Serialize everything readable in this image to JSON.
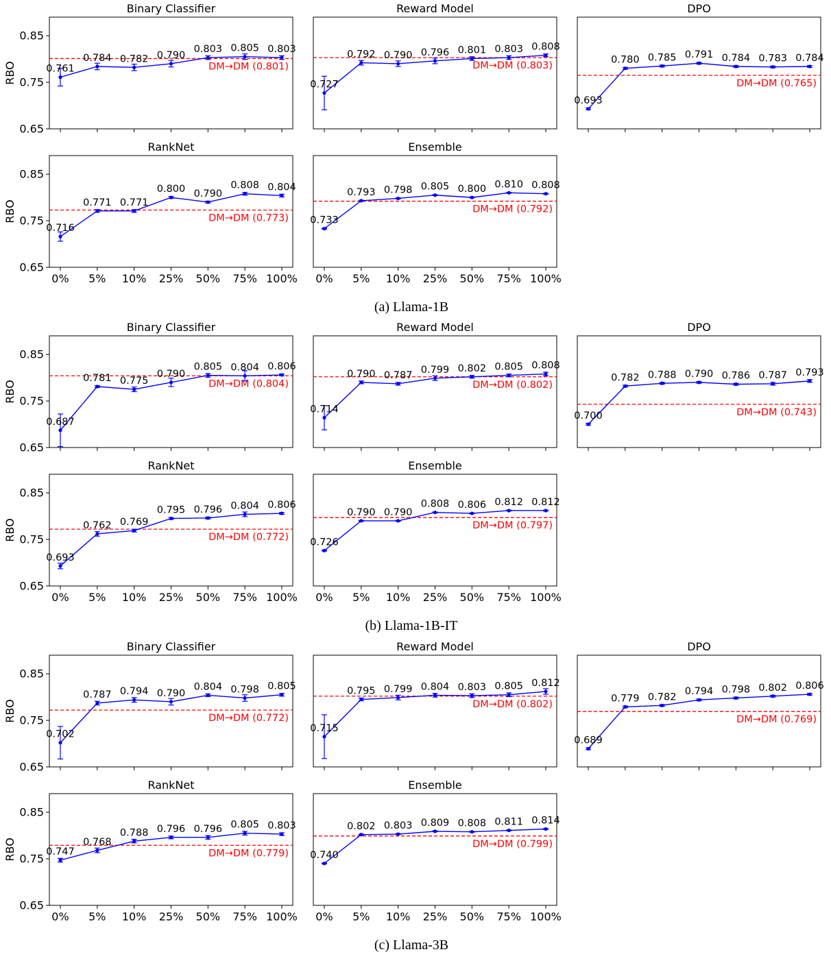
{
  "chart_data": {
    "type": "line",
    "categories": [
      "0%",
      "5%",
      "10%",
      "25%",
      "50%",
      "75%",
      "100%"
    ],
    "ylabel": "RBO",
    "yticks": [
      "0.65",
      "0.75",
      "0.85"
    ],
    "ylim": [
      0.65,
      0.89
    ],
    "groups": [
      {
        "caption": "(a) Llama-1B",
        "panels": [
          {
            "title": "Binary Classifier",
            "values": [
              0.761,
              0.784,
              0.782,
              0.79,
              0.803,
              0.805,
              0.803
            ],
            "value_labels": [
              "0.761",
              "0.784",
              "0.782",
              "0.790",
              "0.803",
              "0.805",
              "0.803"
            ],
            "errors": [
              0.019,
              0.007,
              0.007,
              0.007,
              0.004,
              0.006,
              0.004
            ],
            "ref_value": 0.801,
            "ref_label": "DM→DM (0.801)"
          },
          {
            "title": "Reward Model",
            "values": [
              0.727,
              0.792,
              0.79,
              0.796,
              0.801,
              0.803,
              0.808
            ],
            "value_labels": [
              "0.727",
              "0.792",
              "0.790",
              "0.796",
              "0.801",
              "0.803",
              "0.808"
            ],
            "errors": [
              0.036,
              0.005,
              0.006,
              0.006,
              0.004,
              0.004,
              0.003
            ],
            "ref_value": 0.803,
            "ref_label": "DM→DM (0.803)"
          },
          {
            "title": "DPO",
            "values": [
              0.693,
              0.78,
              0.785,
              0.791,
              0.784,
              0.783,
              0.784
            ],
            "value_labels": [
              "0.693",
              "0.780",
              "0.785",
              "0.791",
              "0.784",
              "0.783",
              "0.784"
            ],
            "errors": [
              0.002,
              0.002,
              0.002,
              0.002,
              0.002,
              0.002,
              0.002
            ],
            "ref_value": 0.765,
            "ref_label": "DM→DM (0.765)"
          },
          {
            "title": "RankNet",
            "values": [
              0.716,
              0.771,
              0.771,
              0.8,
              0.79,
              0.808,
              0.804
            ],
            "value_labels": [
              "0.716",
              "0.771",
              "0.771",
              "0.800",
              "0.790",
              "0.808",
              "0.804"
            ],
            "errors": [
              0.01,
              0.003,
              0.003,
              0.002,
              0.002,
              0.003,
              0.003
            ],
            "ref_value": 0.773,
            "ref_label": "DM→DM (0.773)"
          },
          {
            "title": "Ensemble",
            "values": [
              0.733,
              0.793,
              0.798,
              0.805,
              0.8,
              0.81,
              0.808
            ],
            "value_labels": [
              "0.733",
              "0.793",
              "0.798",
              "0.805",
              "0.800",
              "0.810",
              "0.808"
            ],
            "errors": [
              0.001,
              0.001,
              0.001,
              0.001,
              0.001,
              0.001,
              0.001
            ],
            "ref_value": 0.792,
            "ref_label": "DM→DM (0.792)"
          }
        ]
      },
      {
        "caption": "(b) Llama-1B-IT",
        "panels": [
          {
            "title": "Binary Classifier",
            "values": [
              0.687,
              0.781,
              0.775,
              0.79,
              0.805,
              0.804,
              0.806
            ],
            "value_labels": [
              "0.687",
              "0.781",
              "0.775",
              "0.790",
              "0.805",
              "0.804",
              "0.806"
            ],
            "errors": [
              0.035,
              0.002,
              0.005,
              0.009,
              0.004,
              0.011,
              0.002
            ],
            "ref_value": 0.804,
            "ref_label": "DM→DM (0.804)"
          },
          {
            "title": "Reward Model",
            "values": [
              0.714,
              0.79,
              0.787,
              0.799,
              0.802,
              0.805,
              0.808
            ],
            "value_labels": [
              "0.714",
              "0.790",
              "0.787",
              "0.799",
              "0.802",
              "0.805",
              "0.808"
            ],
            "errors": [
              0.026,
              0.003,
              0.003,
              0.005,
              0.003,
              0.003,
              0.004
            ],
            "ref_value": 0.802,
            "ref_label": "DM→DM (0.802)"
          },
          {
            "title": "DPO",
            "values": [
              0.7,
              0.782,
              0.788,
              0.79,
              0.786,
              0.787,
              0.793
            ],
            "value_labels": [
              "0.700",
              "0.782",
              "0.788",
              "0.790",
              "0.786",
              "0.787",
              "0.793"
            ],
            "errors": [
              0.002,
              0.002,
              0.002,
              0.002,
              0.002,
              0.003,
              0.003
            ],
            "ref_value": 0.743,
            "ref_label": "DM→DM (0.743)"
          },
          {
            "title": "RankNet",
            "values": [
              0.693,
              0.762,
              0.769,
              0.795,
              0.796,
              0.804,
              0.806
            ],
            "value_labels": [
              "0.693",
              "0.762",
              "0.769",
              "0.795",
              "0.796",
              "0.804",
              "0.806"
            ],
            "errors": [
              0.006,
              0.005,
              0.003,
              0.002,
              0.002,
              0.005,
              0.002
            ],
            "ref_value": 0.772,
            "ref_label": "DM→DM (0.772)"
          },
          {
            "title": "Ensemble",
            "values": [
              0.726,
              0.79,
              0.79,
              0.808,
              0.806,
              0.812,
              0.812
            ],
            "value_labels": [
              "0.726",
              "0.790",
              "0.790",
              "0.808",
              "0.806",
              "0.812",
              "0.812"
            ],
            "errors": [
              0.001,
              0.001,
              0.001,
              0.001,
              0.001,
              0.001,
              0.001
            ],
            "ref_value": 0.797,
            "ref_label": "DM→DM (0.797)"
          }
        ]
      },
      {
        "caption": "(c) Llama-3B",
        "panels": [
          {
            "title": "Binary Classifier",
            "values": [
              0.702,
              0.787,
              0.794,
              0.79,
              0.804,
              0.798,
              0.805
            ],
            "value_labels": [
              "0.702",
              "0.787",
              "0.794",
              "0.790",
              "0.804",
              "0.798",
              "0.805"
            ],
            "errors": [
              0.035,
              0.004,
              0.005,
              0.007,
              0.003,
              0.007,
              0.003
            ],
            "ref_value": 0.772,
            "ref_label": "DM→DM (0.772)"
          },
          {
            "title": "Reward Model",
            "values": [
              0.715,
              0.795,
              0.799,
              0.804,
              0.803,
              0.805,
              0.812
            ],
            "value_labels": [
              "0.715",
              "0.795",
              "0.799",
              "0.804",
              "0.803",
              "0.805",
              "0.812"
            ],
            "errors": [
              0.047,
              0.003,
              0.005,
              0.004,
              0.004,
              0.004,
              0.006
            ],
            "ref_value": 0.802,
            "ref_label": "DM→DM (0.802)"
          },
          {
            "title": "DPO",
            "values": [
              0.689,
              0.779,
              0.782,
              0.794,
              0.798,
              0.802,
              0.806
            ],
            "value_labels": [
              "0.689",
              "0.779",
              "0.782",
              "0.794",
              "0.798",
              "0.802",
              "0.806"
            ],
            "errors": [
              0.002,
              0.002,
              0.002,
              0.002,
              0.002,
              0.002,
              0.002
            ],
            "ref_value": 0.769,
            "ref_label": "DM→DM (0.769)"
          },
          {
            "title": "RankNet",
            "values": [
              0.747,
              0.768,
              0.788,
              0.796,
              0.796,
              0.805,
              0.803
            ],
            "value_labels": [
              "0.747",
              "0.768",
              "0.788",
              "0.796",
              "0.796",
              "0.805",
              "0.803"
            ],
            "errors": [
              0.004,
              0.005,
              0.004,
              0.003,
              0.004,
              0.004,
              0.003
            ],
            "ref_value": 0.779,
            "ref_label": "DM→DM (0.779)"
          },
          {
            "title": "Ensemble",
            "values": [
              0.74,
              0.802,
              0.803,
              0.809,
              0.808,
              0.811,
              0.814
            ],
            "value_labels": [
              "0.740",
              "0.802",
              "0.803",
              "0.809",
              "0.808",
              "0.811",
              "0.814"
            ],
            "errors": [
              0.001,
              0.001,
              0.001,
              0.001,
              0.001,
              0.001,
              0.001
            ],
            "ref_value": 0.799,
            "ref_label": "DM→DM (0.799)"
          }
        ]
      }
    ],
    "colors": {
      "series": "#0000ff",
      "reference": "#ff0000"
    },
    "grid": false
  }
}
